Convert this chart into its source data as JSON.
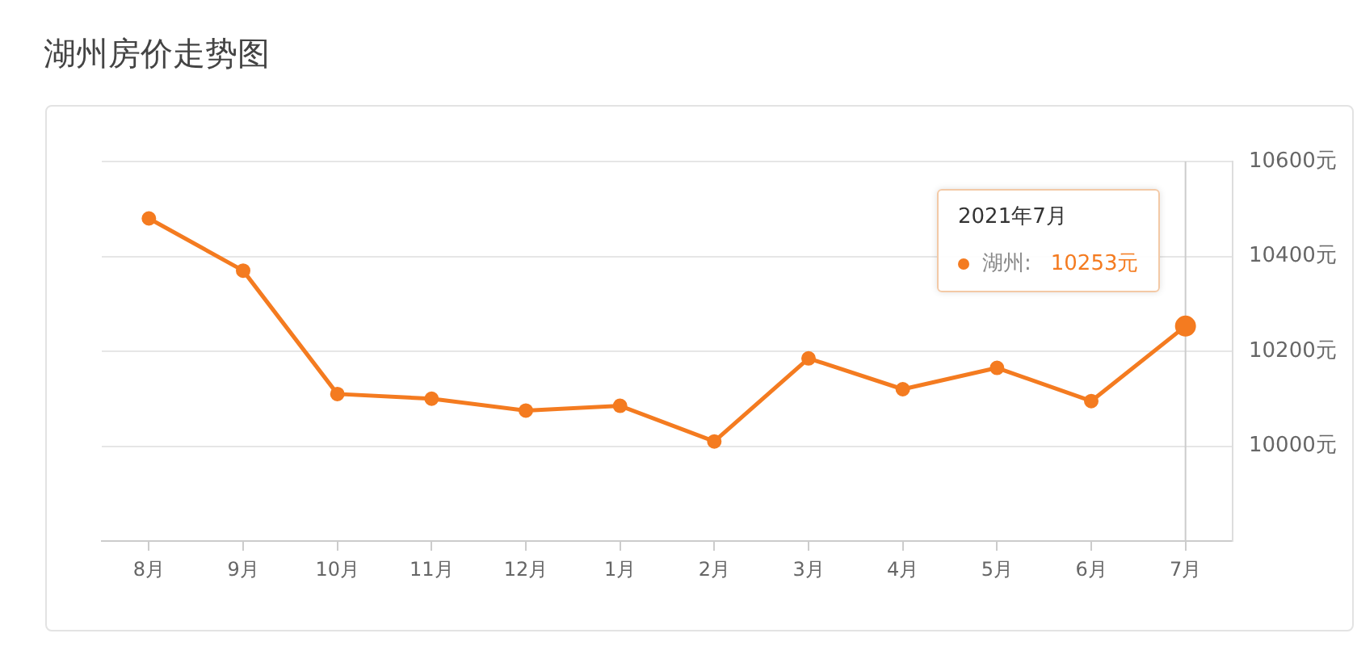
{
  "chart_data": {
    "type": "line",
    "title": "湖州房价走势图",
    "categories": [
      "8月",
      "9月",
      "10月",
      "11月",
      "12月",
      "1月",
      "2月",
      "3月",
      "4月",
      "5月",
      "6月",
      "7月"
    ],
    "series": [
      {
        "name": "湖州:",
        "color": "#f47b20",
        "values": [
          10480,
          10370,
          10110,
          10100,
          10075,
          10085,
          10010,
          10185,
          10120,
          10165,
          10095,
          10253
        ]
      }
    ],
    "ylim": [
      9800,
      10600
    ],
    "yticks": [
      {
        "value": 9800,
        "label": null
      },
      {
        "value": 10000,
        "label": "10000元"
      },
      {
        "value": 10200,
        "label": "10200元"
      },
      {
        "value": 10400,
        "label": "10400元"
      },
      {
        "value": 10600,
        "label": "10600元"
      }
    ],
    "grid": "y",
    "legend": "top right",
    "marker": "circle",
    "line_style": "solid",
    "ref_lines": [
      {
        "axis": "x",
        "value": "7月",
        "color": "#cccccc"
      }
    ],
    "annotations": [
      "2021年7月",
      "10253元"
    ]
  }
}
